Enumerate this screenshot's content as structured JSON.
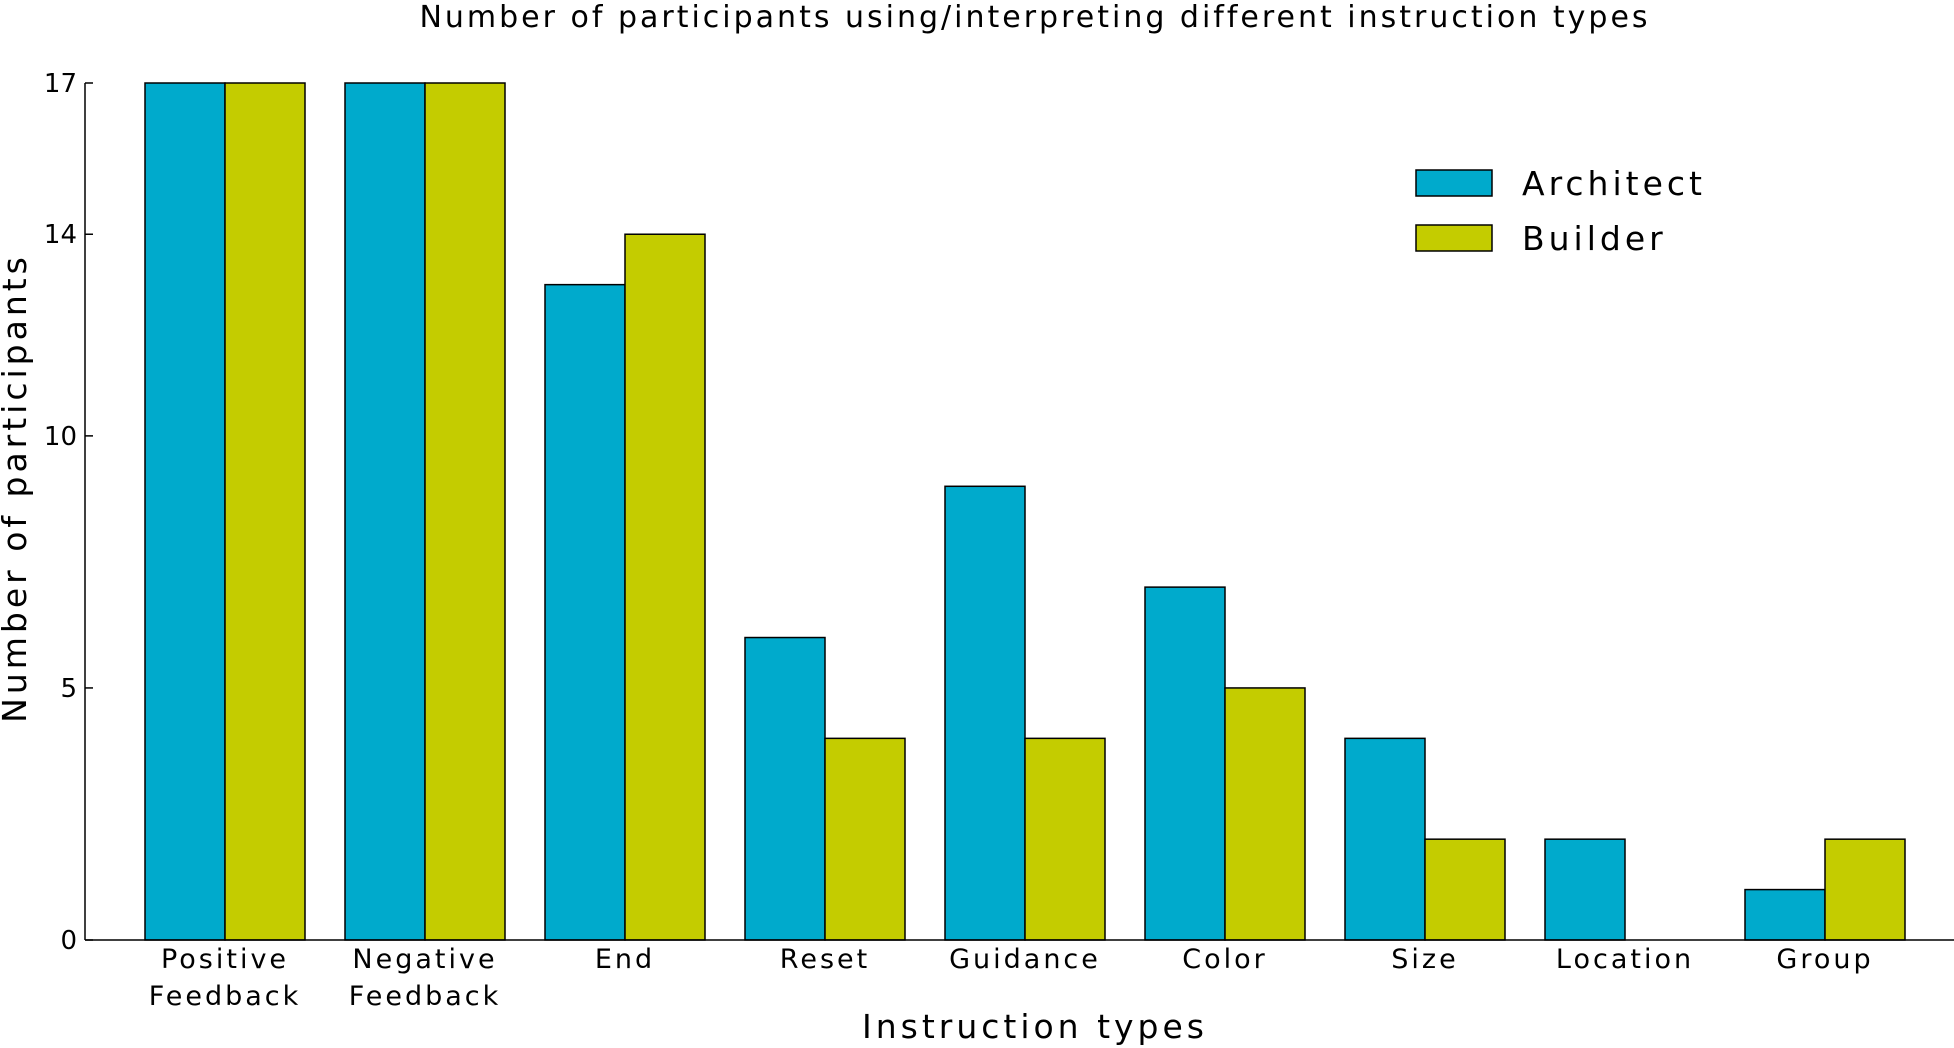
{
  "chart_data": {
    "type": "bar",
    "title": "Number of participants using/interpreting different instruction types",
    "xlabel": "Instruction types",
    "ylabel": "Number of participants",
    "ylim": [
      0,
      17
    ],
    "yticks": [
      0,
      5,
      10,
      14,
      17
    ],
    "categories": [
      [
        "Positive",
        "Feedback"
      ],
      [
        "Negative",
        "Feedback"
      ],
      [
        "End"
      ],
      [
        "Reset"
      ],
      [
        "Guidance"
      ],
      [
        "Color"
      ],
      [
        "Size"
      ],
      [
        "Location"
      ],
      [
        "Group"
      ]
    ],
    "series": [
      {
        "name": "Architect",
        "color": "#00aacc",
        "values": [
          17,
          17,
          13,
          6,
          9,
          7,
          4,
          2,
          1
        ]
      },
      {
        "name": "Builder",
        "color": "#c4cc00",
        "values": [
          17,
          17,
          14,
          4,
          4,
          5,
          2,
          0,
          2
        ]
      }
    ],
    "legend": "top-right",
    "grid": false
  }
}
